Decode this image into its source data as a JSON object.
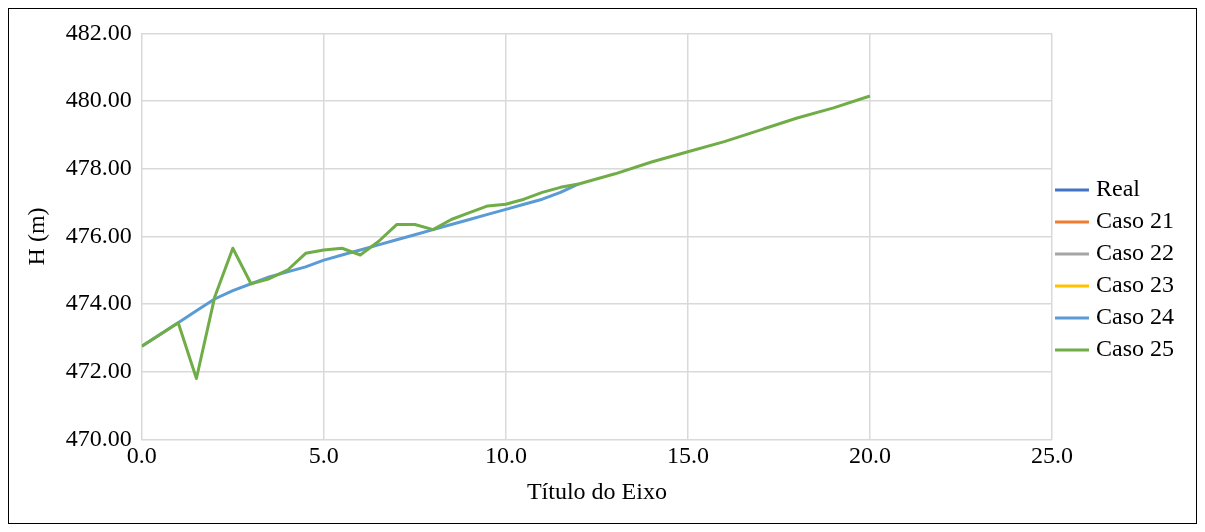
{
  "chart_data": {
    "type": "line",
    "xlabel": "Título do Eixo",
    "ylabel": "H (m)",
    "x": [
      0,
      0.5,
      1,
      1.5,
      2,
      2.5,
      3,
      3.5,
      4,
      4.5,
      5,
      5.5,
      6,
      6.5,
      7,
      7.5,
      8,
      8.5,
      9,
      9.5,
      10,
      10.5,
      11,
      11.5,
      12,
      13,
      14,
      15,
      16,
      17,
      18,
      19,
      20
    ],
    "series": [
      {
        "name": "Real",
        "color": "#4472c4",
        "values": [
          null,
          null,
          null,
          null,
          null,
          null,
          null,
          null,
          null,
          null,
          null,
          null,
          null,
          null,
          null,
          null,
          null,
          null,
          null,
          null,
          null,
          null,
          null,
          null,
          null,
          null,
          null,
          null,
          null,
          null,
          null,
          null,
          null
        ]
      },
      {
        "name": "Caso 21",
        "color": "#ed7d31",
        "values": [
          null,
          null,
          null,
          null,
          null,
          null,
          null,
          null,
          null,
          null,
          null,
          null,
          null,
          null,
          null,
          null,
          null,
          null,
          null,
          null,
          null,
          null,
          null,
          null,
          null,
          null,
          null,
          null,
          null,
          null,
          null,
          null,
          null
        ]
      },
      {
        "name": "Caso 22",
        "color": "#a5a5a5",
        "values": [
          null,
          null,
          null,
          null,
          null,
          null,
          null,
          null,
          null,
          null,
          null,
          null,
          null,
          null,
          null,
          null,
          null,
          null,
          null,
          null,
          null,
          null,
          null,
          null,
          null,
          null,
          null,
          null,
          null,
          null,
          null,
          null,
          null
        ]
      },
      {
        "name": "Caso 23",
        "color": "#ffc000",
        "values": [
          null,
          null,
          null,
          null,
          null,
          null,
          null,
          null,
          null,
          null,
          null,
          null,
          null,
          null,
          null,
          null,
          null,
          null,
          null,
          null,
          null,
          null,
          null,
          null,
          null,
          null,
          null,
          null,
          null,
          null,
          null,
          null,
          null
        ]
      },
      {
        "name": "Caso 24",
        "color": "#5b9bd5",
        "values": [
          472.75,
          473.1,
          473.45,
          473.8,
          474.15,
          474.4,
          474.6,
          474.8,
          474.95,
          475.1,
          475.3,
          475.45,
          475.6,
          475.75,
          475.9,
          476.05,
          476.2,
          476.35,
          476.5,
          476.65,
          476.8,
          476.95,
          477.1,
          477.3,
          477.55,
          null,
          null,
          null,
          null,
          null,
          null,
          null,
          null
        ]
      },
      {
        "name": "Caso 25",
        "color": "#70ad47",
        "values": [
          472.75,
          473.1,
          473.45,
          471.8,
          474.2,
          475.65,
          474.6,
          474.75,
          475.0,
          475.5,
          475.6,
          475.65,
          475.45,
          475.85,
          476.35,
          476.35,
          476.2,
          476.5,
          476.7,
          476.9,
          476.95,
          477.1,
          477.3,
          477.45,
          477.55,
          477.85,
          478.2,
          478.5,
          478.8,
          479.15,
          479.5,
          479.8,
          480.15
        ]
      }
    ],
    "xlim": [
      0,
      25
    ],
    "xticks": [
      {
        "value": 0,
        "label": "0.0"
      },
      {
        "value": 5,
        "label": "5.0"
      },
      {
        "value": 10,
        "label": "10.0"
      },
      {
        "value": 15,
        "label": "15.0"
      },
      {
        "value": 20,
        "label": "20.0"
      },
      {
        "value": 25,
        "label": "25.0"
      }
    ],
    "ylim": [
      470,
      482
    ],
    "yticks": [
      {
        "value": 470,
        "label": "470.00"
      },
      {
        "value": 472,
        "label": "472.00"
      },
      {
        "value": 474,
        "label": "474.00"
      },
      {
        "value": 476,
        "label": "476.00"
      },
      {
        "value": 478,
        "label": "478.00"
      },
      {
        "value": 480,
        "label": "480.00"
      },
      {
        "value": 482,
        "label": "482.00"
      }
    ],
    "grid": true,
    "legend": "right",
    "marker": "none",
    "line_style": "solid"
  }
}
